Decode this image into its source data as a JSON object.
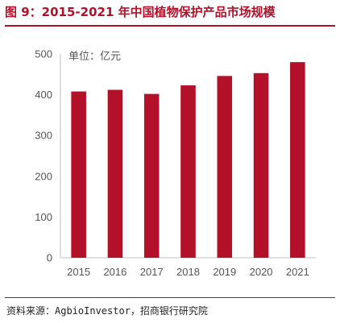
{
  "header": {
    "title": "图 9：2015-2021 年中国植物保护产品市场规模"
  },
  "footer": {
    "source": "资料来源：AgbioInvestor，招商银行研究院"
  },
  "colors": {
    "bar": "#b3102a",
    "accent": "#b3102a"
  },
  "chart_data": {
    "type": "bar",
    "title": "",
    "unit_label": "单位：亿元",
    "categories": [
      "2015",
      "2016",
      "2017",
      "2018",
      "2019",
      "2020",
      "2021"
    ],
    "values": [
      408,
      412,
      402,
      423,
      446,
      453,
      480
    ],
    "ylim": [
      0,
      500
    ],
    "yticks": [
      0,
      100,
      200,
      300,
      400,
      500
    ],
    "grid": false,
    "legend": "none"
  }
}
